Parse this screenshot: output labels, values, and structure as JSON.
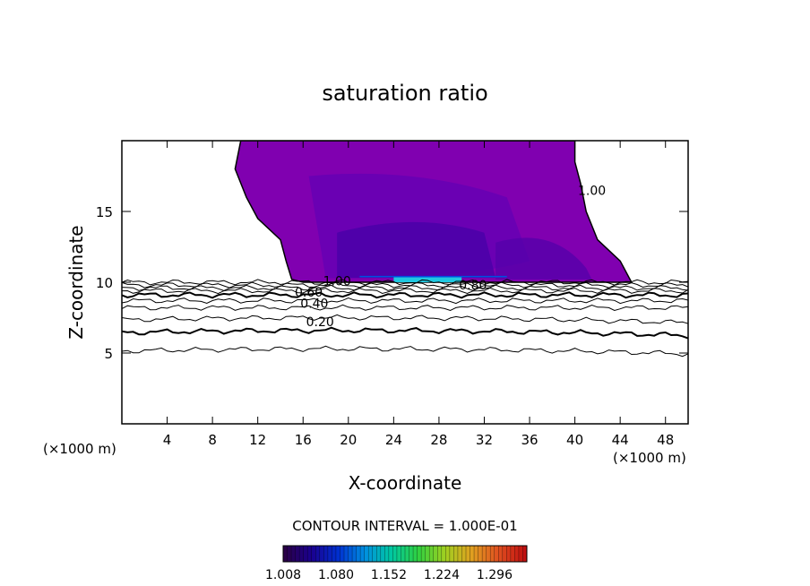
{
  "chart_data": {
    "type": "contour",
    "title": "saturation ratio",
    "xlabel": "X-coordinate",
    "ylabel": "Z-coordinate",
    "x_unit": "(×1000 m)",
    "y_unit": "(×1000 m)",
    "xlim": [
      0,
      50
    ],
    "ylim": [
      0,
      20
    ],
    "x_ticks": [
      "4",
      "8",
      "12",
      "16",
      "20",
      "24",
      "28",
      "32",
      "36",
      "40",
      "44",
      "48"
    ],
    "y_ticks": [
      "5",
      "10",
      "15"
    ],
    "contour_interval_text": "CONTOUR INTERVAL = 1.000E-01",
    "colorbar": {
      "min": 1.008,
      "max": 1.34,
      "tick_labels": [
        "1.008",
        "1.080",
        "1.152",
        "1.224",
        "1.296"
      ],
      "colors": [
        "#2a0048",
        "#1a0090",
        "#0030d0",
        "#0090e0",
        "#00c8a0",
        "#30d040",
        "#a0d020",
        "#e0a020",
        "#e05020",
        "#c01010"
      ]
    },
    "supersaturated_region": {
      "color": "#8000b0",
      "boundary": [
        [
          10.5,
          20
        ],
        [
          10.0,
          18
        ],
        [
          11.0,
          16
        ],
        [
          12.0,
          14.5
        ],
        [
          14.0,
          13
        ],
        [
          14.5,
          11.5
        ],
        [
          15.0,
          10.2
        ],
        [
          16.0,
          10.0
        ],
        [
          45.0,
          10.0
        ],
        [
          44.0,
          11.5
        ],
        [
          42.0,
          13.0
        ],
        [
          41.0,
          15.0
        ],
        [
          40.5,
          17.0
        ],
        [
          40.0,
          18.5
        ],
        [
          40.0,
          20
        ]
      ]
    },
    "contour_labels": [
      {
        "text": "1.00",
        "x": 19.0,
        "z": 10.1
      },
      {
        "text": "0.80",
        "x": 31.0,
        "z": 9.8
      },
      {
        "text": "0.60",
        "x": 16.5,
        "z": 9.3
      },
      {
        "text": "0.40",
        "x": 17.0,
        "z": 8.5
      },
      {
        "text": "0.20",
        "x": 17.5,
        "z": 7.2
      },
      {
        "text": "1.00",
        "x": 41.5,
        "z": 16.5
      }
    ],
    "contour_levels_z_at_x0": [
      10.0,
      9.8,
      9.6,
      9.4,
      9.1,
      8.7,
      8.2,
      7.5,
      6.6,
      5.3
    ]
  }
}
